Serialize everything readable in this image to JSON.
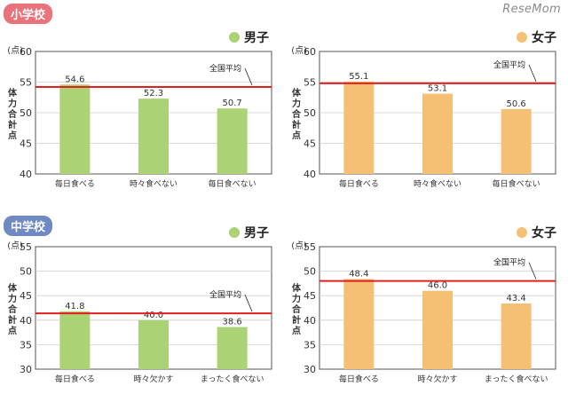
{
  "watermark": "ReseMom",
  "sections": {
    "elementary": {
      "label": "小学校"
    },
    "junior": {
      "label": "中学校"
    }
  },
  "legend": {
    "boys": "男子",
    "girls": "女子"
  },
  "colors": {
    "boys": "#abd375",
    "girls": "#f5bf74",
    "avg_line": "#e02020",
    "elementary_badge": "#e8737a",
    "junior_badge": "#6f89c2"
  },
  "chart_data": [
    {
      "id": "elementary-boys",
      "type": "bar",
      "title": "男子",
      "unit_label": "(点)",
      "ylabel": "体力合計点",
      "ylim": [
        40,
        60
      ],
      "yticks": [
        40,
        45,
        50,
        55,
        60
      ],
      "categories": [
        "毎日食べる",
        "時々食べない",
        "毎日食べない"
      ],
      "values": [
        54.6,
        52.3,
        50.7
      ],
      "average": {
        "label": "全国平均",
        "value": 54.2
      }
    },
    {
      "id": "elementary-girls",
      "type": "bar",
      "title": "女子",
      "unit_label": "(点)",
      "ylabel": "体力合計点",
      "ylim": [
        40,
        60
      ],
      "yticks": [
        40,
        45,
        50,
        55,
        60
      ],
      "categories": [
        "毎日食べる",
        "時々食べない",
        "毎日食べない"
      ],
      "values": [
        55.1,
        53.1,
        50.6
      ],
      "average": {
        "label": "全国平均",
        "value": 54.8
      }
    },
    {
      "id": "junior-boys",
      "type": "bar",
      "title": "男子",
      "unit_label": "(点)",
      "ylabel": "体力合計点",
      "ylim": [
        30,
        55
      ],
      "yticks": [
        30,
        35,
        40,
        45,
        50,
        55
      ],
      "categories": [
        "毎日食べる",
        "時々欠かす",
        "まったく食べない"
      ],
      "values": [
        41.8,
        40.0,
        38.6
      ],
      "average": {
        "label": "全国平均",
        "value": 41.4
      }
    },
    {
      "id": "junior-girls",
      "type": "bar",
      "title": "女子",
      "unit_label": "(点)",
      "ylabel": "体力合計点",
      "ylim": [
        30,
        55
      ],
      "yticks": [
        30,
        35,
        40,
        45,
        50,
        55
      ],
      "categories": [
        "毎日食べる",
        "時々欠かす",
        "まったく食べない"
      ],
      "values": [
        48.4,
        46.0,
        43.4
      ],
      "average": {
        "label": "全国平均",
        "value": 48.0
      }
    }
  ]
}
